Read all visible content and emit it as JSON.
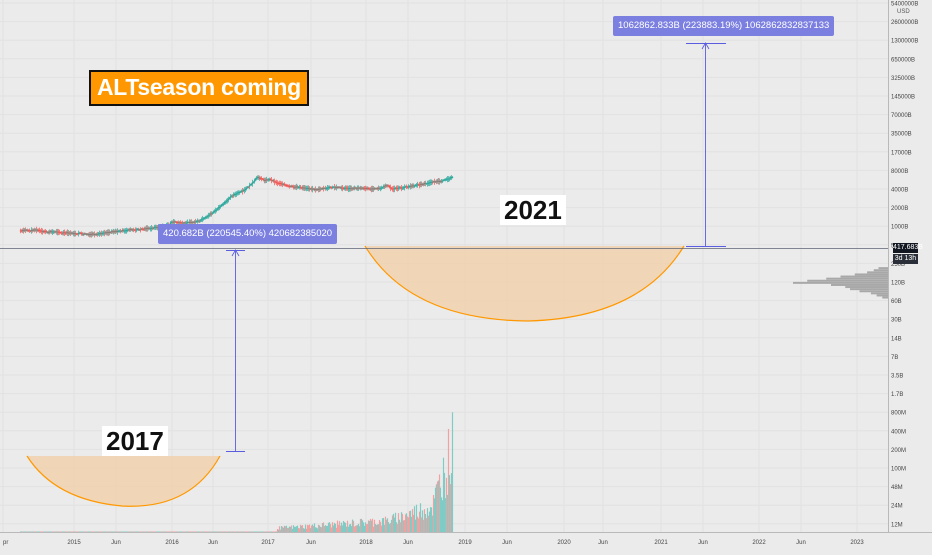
{
  "annotations": {
    "title": "ALTseason coming",
    "cup_2017": "2017",
    "cup_2021": "2021",
    "measure_2017": "420.682B (220545.40%) 420682385020",
    "measure_2021": "1062862.833B (223883.19%) 1062862832837133"
  },
  "price_scale": {
    "currency": "USD",
    "last_value": "417.683B",
    "countdown": "3d 13h"
  },
  "colors": {
    "background": "#ebebeb",
    "candle_up": "#26a69a",
    "candle_down": "#ef5350",
    "volume_up": "#7fccc5",
    "volume_down": "#f2a1a0",
    "cup_fill": "#f2cfa6",
    "cup_stroke": "#ff9800",
    "measure": "#5a5de0",
    "label_bg": "#7b7fe0",
    "title_bg": "#ff9800"
  },
  "chart_data": {
    "type": "candlestick",
    "y_scale": "log",
    "x_ticks": [
      "pr",
      "2015",
      "Jun",
      "2016",
      "Jun",
      "2017",
      "Jun",
      "2018",
      "Jun",
      "2019",
      "Jun",
      "2020",
      "Jun",
      "2021",
      "Jun",
      "2022",
      "Jun",
      "2023"
    ],
    "y_ticks": [
      "5400000B",
      "2600000B",
      "1300000B",
      "650000B",
      "325000B",
      "145000B",
      "70000B",
      "35000B",
      "17000B",
      "8000B",
      "4000B",
      "2000B",
      "1000B",
      "500B",
      "250B",
      "120B",
      "60B",
      "30B",
      "14B",
      "7B",
      "3.5B",
      "1.7B",
      "800M",
      "400M",
      "200M",
      "100M",
      "48M",
      "24M",
      "12M"
    ],
    "price_path": [
      [
        0,
        1.0
      ],
      [
        0.6,
        1.04
      ],
      [
        1.2,
        0.98
      ],
      [
        2.0,
        1.05
      ],
      [
        2.6,
        0.99
      ],
      [
        3.4,
        0.92
      ],
      [
        4.2,
        0.95
      ],
      [
        5.0,
        0.88
      ],
      [
        5.8,
        0.9
      ],
      [
        6.6,
        0.84
      ],
      [
        7.4,
        0.86
      ],
      [
        8.4,
        0.8
      ],
      [
        9.4,
        0.83
      ],
      [
        10.4,
        0.86
      ],
      [
        11.4,
        0.93
      ],
      [
        12.2,
        0.97
      ],
      [
        13.0,
        1.01
      ],
      [
        13.8,
        1.05
      ],
      [
        14.8,
        1.06
      ],
      [
        15.6,
        1.1
      ],
      [
        16.4,
        1.14
      ],
      [
        17.2,
        1.2
      ],
      [
        18.0,
        1.25
      ],
      [
        18.6,
        1.3
      ],
      [
        18.9,
        1.5
      ],
      [
        19.4,
        1.45
      ],
      [
        20.0,
        1.43
      ],
      [
        20.8,
        1.42
      ],
      [
        21.6,
        1.45
      ],
      [
        22.4,
        1.55
      ],
      [
        23.2,
        1.75
      ],
      [
        24.0,
        1.95
      ],
      [
        24.8,
        2.25
      ],
      [
        25.6,
        2.55
      ],
      [
        26.4,
        2.85
      ],
      [
        27.2,
        3.05
      ],
      [
        28.0,
        3.2
      ],
      [
        28.6,
        3.4
      ],
      [
        29.2,
        3.68
      ],
      [
        29.6,
        3.9
      ],
      [
        30.0,
        3.78
      ],
      [
        30.6,
        3.7
      ],
      [
        31.2,
        3.75
      ],
      [
        31.8,
        3.6
      ],
      [
        32.6,
        3.5
      ],
      [
        33.4,
        3.42
      ],
      [
        34.4,
        3.35
      ],
      [
        35.4,
        3.3
      ],
      [
        36.4,
        3.22
      ],
      [
        37.0,
        3.2
      ],
      [
        38.0,
        3.28
      ],
      [
        39.0,
        3.35
      ],
      [
        40.0,
        3.3
      ],
      [
        41.0,
        3.27
      ],
      [
        42.0,
        3.29
      ],
      [
        43.2,
        3.26
      ],
      [
        44.2,
        3.24
      ],
      [
        45.0,
        3.28
      ],
      [
        45.8,
        3.45
      ],
      [
        46.4,
        3.25
      ],
      [
        47.2,
        3.28
      ],
      [
        48.2,
        3.35
      ],
      [
        49.2,
        3.42
      ],
      [
        50.2,
        3.5
      ],
      [
        51.2,
        3.58
      ],
      [
        52.2,
        3.66
      ],
      [
        53.0,
        3.72
      ],
      [
        53.6,
        3.8
      ],
      [
        54.0,
        3.86
      ]
    ],
    "volume_profile": [
      [
        -8.5,
        0.1
      ],
      [
        -7.5,
        0.15
      ],
      [
        -6.5,
        0.22
      ],
      [
        -5.5,
        0.35
      ],
      [
        -4.5,
        0.5
      ],
      [
        -3.5,
        0.65
      ],
      [
        -2.5,
        0.85
      ],
      [
        -1.5,
        1.0
      ],
      [
        -0.5,
        0.6
      ],
      [
        0.5,
        0.45
      ],
      [
        1.5,
        0.4
      ],
      [
        2.5,
        0.3
      ],
      [
        3.5,
        0.18
      ],
      [
        4.5,
        0.12
      ],
      [
        5.5,
        0.06
      ]
    ]
  }
}
